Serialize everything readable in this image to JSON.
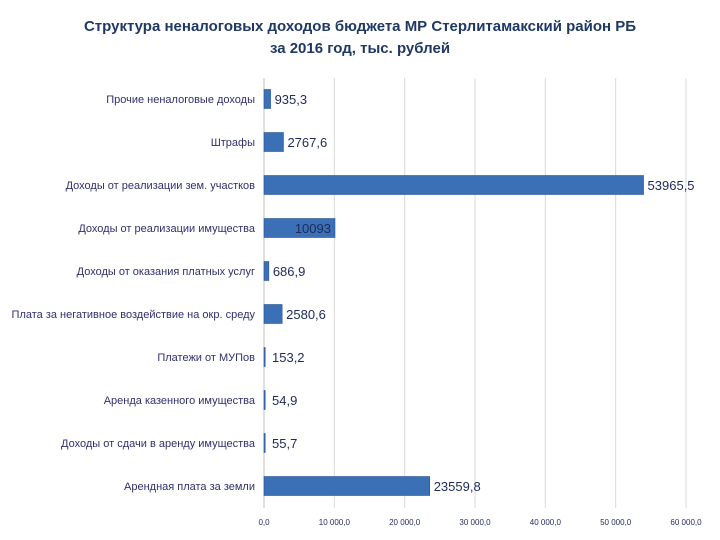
{
  "chart_data": {
    "type": "bar",
    "orientation": "horizontal",
    "title": "Структура неналоговых доходов бюджета МР Стерлитамакский район РБ",
    "subtitle": "за 2016 год, тыс. рублей",
    "categories": [
      "Прочие неналоговые доходы",
      "Штрафы",
      "Доходы от реализации зем. участков",
      "Доходы от реализации имущества",
      "Доходы от оказания платных услуг",
      "Плата за негативное воздействие на окр. среду",
      "Платежи от МУПов",
      "Аренда казенного имущества",
      "Доходы от сдачи в аренду имущества",
      "Арендная плата за земли"
    ],
    "values": [
      935.3,
      2767.6,
      53965.5,
      10093,
      686.9,
      2580.6,
      153.2,
      54.9,
      55.7,
      23559.8
    ],
    "value_labels": [
      "935,3",
      "2767,6",
      "53965,5",
      "10093",
      "686,9",
      "2580,6",
      "153,2",
      "54,9",
      "55,7",
      "23559,8"
    ],
    "xlim": [
      0,
      60000
    ],
    "x_ticks": [
      0,
      10000,
      20000,
      30000,
      40000,
      50000,
      60000
    ],
    "x_tick_labels": [
      "0,0",
      "10 000,0",
      "20 000,0",
      "30 000,0",
      "40 000,0",
      "50 000,0",
      "60 000,0"
    ],
    "gridlines": "vertical",
    "legend": "none",
    "colors": {
      "bar": "#3b6fb6",
      "bar_edge": "#2a5596",
      "grid": "#d9d9d9",
      "text": "#1f2a5a"
    }
  }
}
